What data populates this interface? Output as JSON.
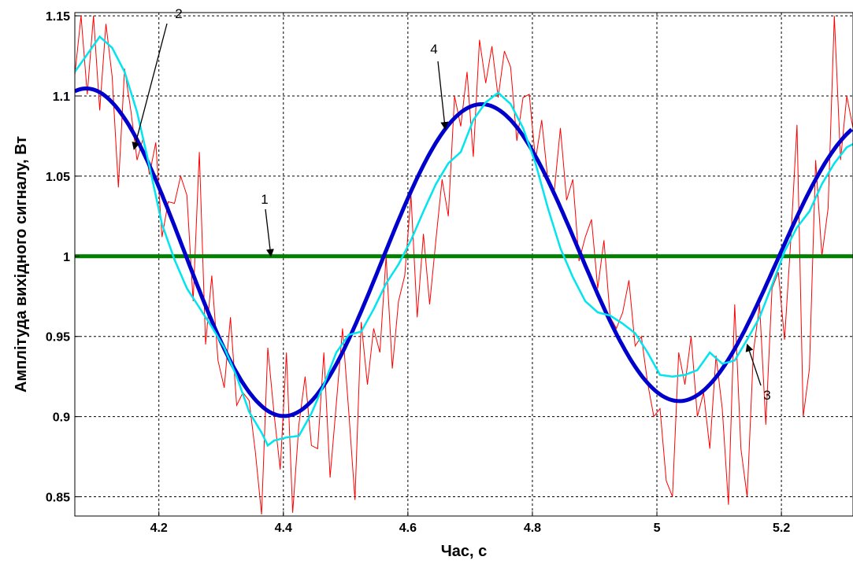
{
  "chart_data": {
    "type": "line",
    "title": "",
    "xlabel": "Час, с",
    "ylabel": "Амплітуда вихідного сигналу, Вт",
    "xlim": [
      4.065,
      5.315
    ],
    "ylim": [
      0.838,
      1.152
    ],
    "grid": true,
    "x_ticks": [
      4.2,
      4.4,
      4.6,
      4.8,
      5,
      5.2
    ],
    "x_tick_labels": [
      "4.2",
      "4.4",
      "4.6",
      "4.8",
      "5",
      "5.2"
    ],
    "y_ticks": [
      0.85,
      0.9,
      0.95,
      1,
      1.05,
      1.1,
      1.15
    ],
    "y_tick_labels": [
      "0.85",
      "0.9",
      "0.95",
      "1",
      "1.05",
      "1.1",
      "1.15"
    ],
    "series": [
      {
        "label": "1",
        "color": "#008000",
        "x": [
          4.065,
          5.315
        ],
        "y": [
          1.0,
          1.0
        ]
      },
      {
        "label": "2",
        "color": "#ff0000",
        "x": [
          4.065,
          4.075,
          4.085,
          4.095,
          4.105,
          4.115,
          4.125,
          4.135,
          4.145,
          4.155,
          4.165,
          4.175,
          4.185,
          4.195,
          4.205,
          4.215,
          4.225,
          4.235,
          4.245,
          4.255,
          4.265,
          4.275,
          4.285,
          4.295,
          4.305,
          4.315,
          4.325,
          4.335,
          4.345,
          4.355,
          4.365,
          4.375,
          4.385,
          4.395,
          4.405,
          4.415,
          4.425,
          4.435,
          4.445,
          4.455,
          4.465,
          4.475,
          4.485,
          4.495,
          4.505,
          4.515,
          4.525,
          4.535,
          4.545,
          4.555,
          4.565,
          4.575,
          4.585,
          4.595,
          4.605,
          4.615,
          4.625,
          4.635,
          4.645,
          4.655,
          4.665,
          4.675,
          4.685,
          4.695,
          4.705,
          4.715,
          4.725,
          4.735,
          4.745,
          4.755,
          4.765,
          4.775,
          4.785,
          4.795,
          4.805,
          4.815,
          4.825,
          4.835,
          4.845,
          4.855,
          4.865,
          4.875,
          4.885,
          4.895,
          4.905,
          4.915,
          4.925,
          4.935,
          4.945,
          4.955,
          4.965,
          4.975,
          4.985,
          4.995,
          5.005,
          5.015,
          5.025,
          5.035,
          5.045,
          5.055,
          5.065,
          5.075,
          5.085,
          5.095,
          5.105,
          5.115,
          5.125,
          5.135,
          5.145,
          5.155,
          5.165,
          5.175,
          5.185,
          5.195,
          5.205,
          5.215,
          5.225,
          5.235,
          5.245,
          5.255,
          5.265,
          5.275,
          5.285,
          5.295,
          5.305,
          5.315
        ],
        "y": [
          1.113,
          1.15,
          1.101,
          1.15,
          1.091,
          1.145,
          1.112,
          1.043,
          1.117,
          1.091,
          1.06,
          1.074,
          1.051,
          1.071,
          1.012,
          1.034,
          1.033,
          1.05,
          1.038,
          0.972,
          1.065,
          0.945,
          0.988,
          0.935,
          0.918,
          0.962,
          0.907,
          0.915,
          0.91,
          0.878,
          0.839,
          0.943,
          0.902,
          0.867,
          0.94,
          0.84,
          0.895,
          0.925,
          0.882,
          0.88,
          0.94,
          0.862,
          0.908,
          0.955,
          0.903,
          0.848,
          0.959,
          0.92,
          0.955,
          0.94,
          1.0,
          0.93,
          0.972,
          0.988,
          1.038,
          0.962,
          1.014,
          0.97,
          1.01,
          1.048,
          1.025,
          1.1,
          1.081,
          1.115,
          1.062,
          1.135,
          1.108,
          1.131,
          1.099,
          1.128,
          1.118,
          1.072,
          1.099,
          1.101,
          1.06,
          1.085,
          1.047,
          1.04,
          1.08,
          1.035,
          1.048,
          0.997,
          1.012,
          1.023,
          0.98,
          1.01,
          0.962,
          0.955,
          0.965,
          0.985,
          0.944,
          0.95,
          0.921,
          0.9,
          0.905,
          0.86,
          0.85,
          0.94,
          0.92,
          0.95,
          0.9,
          0.915,
          0.88,
          0.938,
          0.905,
          0.845,
          0.97,
          0.88,
          0.85,
          0.94,
          0.97,
          0.895,
          0.98,
          0.99,
          0.948,
          1.01,
          1.082,
          0.9,
          0.93,
          1.06,
          1.0,
          1.03,
          1.15,
          1.06,
          1.1,
          1.08
        ]
      },
      {
        "label": "3",
        "color": "#00e5ee",
        "x": [
          4.065,
          4.085,
          4.105,
          4.125,
          4.145,
          4.165,
          4.185,
          4.205,
          4.225,
          4.245,
          4.265,
          4.285,
          4.305,
          4.325,
          4.345,
          4.365,
          4.375,
          4.385,
          4.405,
          4.425,
          4.445,
          4.465,
          4.485,
          4.505,
          4.525,
          4.545,
          4.565,
          4.585,
          4.605,
          4.625,
          4.645,
          4.665,
          4.685,
          4.705,
          4.725,
          4.745,
          4.765,
          4.785,
          4.805,
          4.825,
          4.845,
          4.865,
          4.885,
          4.905,
          4.925,
          4.945,
          4.965,
          4.985,
          5.005,
          5.025,
          5.045,
          5.065,
          5.085,
          5.105,
          5.125,
          5.145,
          5.165,
          5.185,
          5.205,
          5.225,
          5.245,
          5.265,
          5.285,
          5.305,
          5.315
        ],
        "y": [
          1.115,
          1.126,
          1.137,
          1.13,
          1.115,
          1.09,
          1.056,
          1.02,
          0.998,
          0.98,
          0.968,
          0.956,
          0.943,
          0.925,
          0.903,
          0.89,
          0.882,
          0.885,
          0.887,
          0.888,
          0.902,
          0.92,
          0.94,
          0.951,
          0.953,
          0.967,
          0.983,
          0.995,
          1.01,
          1.028,
          1.045,
          1.058,
          1.065,
          1.085,
          1.096,
          1.102,
          1.095,
          1.08,
          1.058,
          1.03,
          1.005,
          0.987,
          0.972,
          0.965,
          0.963,
          0.958,
          0.952,
          0.94,
          0.926,
          0.925,
          0.926,
          0.929,
          0.94,
          0.933,
          0.935,
          0.948,
          0.962,
          0.982,
          1.003,
          1.018,
          1.028,
          1.045,
          1.058,
          1.068,
          1.07
        ]
      },
      {
        "label": "4",
        "color": "#0000cc",
        "amplitude": 0.105,
        "period": 0.635,
        "peak_x": 4.085,
        "offset": 1.0,
        "decay_per_s": 0.155
      }
    ],
    "annotations": [
      {
        "text": "1",
        "arrow_to_series": "1"
      },
      {
        "text": "2",
        "arrow_to_series": "2"
      },
      {
        "text": "3",
        "arrow_to_series": "3"
      },
      {
        "text": "4",
        "arrow_to_series": "4"
      }
    ]
  }
}
